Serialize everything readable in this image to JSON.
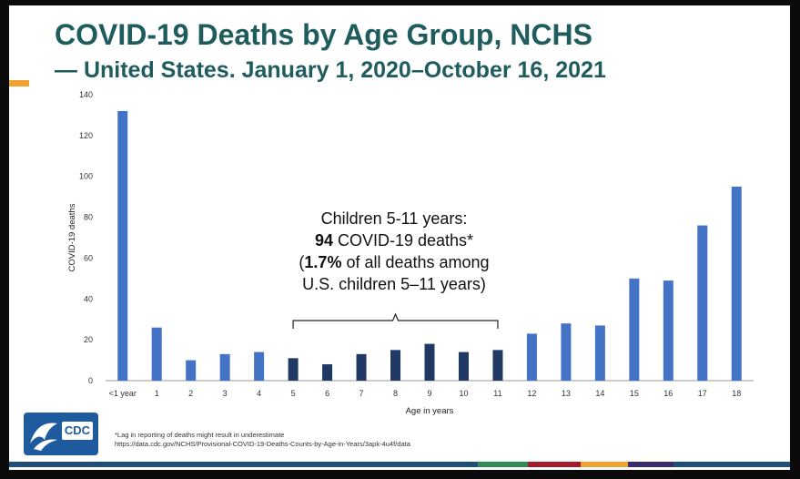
{
  "title": {
    "line1": "COVID-19 Deaths by Age Group, NCHS",
    "line2": "— United States. January 1, 2020–October 16, 2021"
  },
  "annotation": {
    "line1": "Children 5-11 years:",
    "deaths_number": "94",
    "deaths_rest": " COVID-19 deaths*",
    "line3_open": "(",
    "line3_bold": "1.7%",
    "line3_rest": " of all deaths among",
    "line4": "U.S. children 5–11 years)"
  },
  "footnote": {
    "line1": "*Lag in reporting of deaths might result in underestimate",
    "line2": "https://data.cdc.gov/NCHS/Provisional-COVID-19-Deaths-Counts-by-Age-in-Years/3apk-4u4f/data"
  },
  "logo": {
    "text": "CDC"
  },
  "colors": {
    "title": "#1e5c5d",
    "bar_default": "#4472c4",
    "bar_highlight": "#1f3864",
    "accent": "#f2a22e"
  },
  "chart_data": {
    "type": "bar",
    "title": "",
    "xlabel": "Age in years",
    "ylabel": "COVID-19 deaths",
    "ylim": [
      0,
      140
    ],
    "yticks": [
      0,
      20,
      40,
      60,
      80,
      100,
      120,
      140
    ],
    "categories": [
      "<1 year",
      "1",
      "2",
      "3",
      "4",
      "5",
      "6",
      "7",
      "8",
      "9",
      "10",
      "11",
      "12",
      "13",
      "14",
      "15",
      "16",
      "17",
      "18"
    ],
    "values": [
      132,
      26,
      10,
      13,
      14,
      11,
      8,
      13,
      15,
      18,
      14,
      15,
      23,
      28,
      27,
      50,
      49,
      76,
      95
    ],
    "highlighted_categories": [
      "5",
      "6",
      "7",
      "8",
      "9",
      "10",
      "11"
    ],
    "grid": false,
    "legend": "none"
  }
}
